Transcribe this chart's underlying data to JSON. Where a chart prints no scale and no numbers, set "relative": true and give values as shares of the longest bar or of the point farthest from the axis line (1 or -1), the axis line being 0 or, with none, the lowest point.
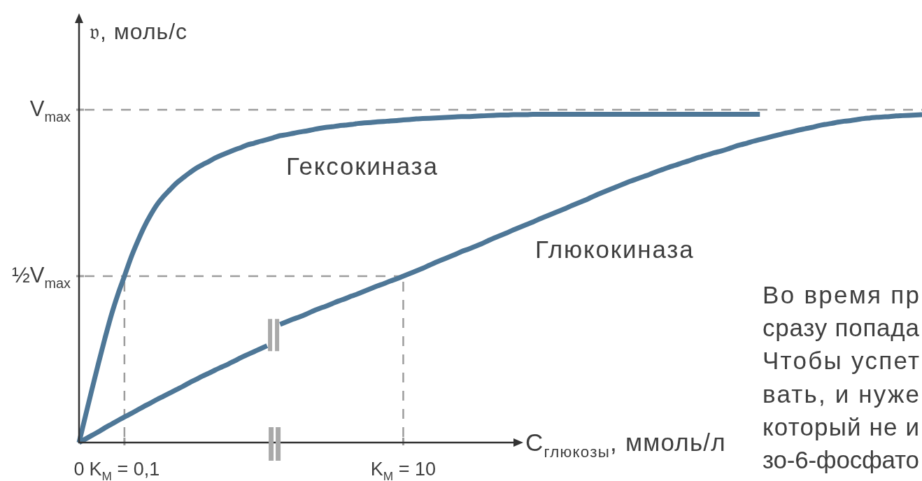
{
  "chart_data": {
    "type": "line",
    "relative": true,
    "xlabel": "C$_{глюкозы}$, ммоль/л",
    "ylabel": "𝔳, моль/с",
    "categories": [
      "0",
      null,
      null,
      null,
      null,
      null,
      null,
      "K$_{M}$ = 0,1",
      null,
      null,
      null,
      null,
      null,
      null,
      null,
      null,
      null,
      null,
      null,
      null,
      null,
      null,
      null,
      null,
      null,
      null,
      null,
      null,
      null,
      null,
      null,
      null,
      null,
      null,
      null,
      null,
      null,
      null,
      null,
      null,
      null,
      null,
      null,
      null,
      null,
      null,
      null,
      null,
      null,
      null,
      "K$_{M}$ = 10",
      null,
      null,
      null,
      null,
      null,
      null,
      null,
      null,
      null,
      null,
      null,
      null,
      null,
      null,
      null,
      null,
      null,
      null,
      null,
      null,
      null,
      null,
      null,
      null,
      null,
      null,
      null,
      null,
      null,
      null,
      null,
      null,
      null,
      null,
      null,
      null,
      null,
      null,
      null,
      null,
      null,
      null,
      null,
      null,
      null,
      null,
      null,
      null,
      null,
      null,
      null,
      null,
      null,
      null,
      null,
      null,
      null,
      null,
      null,
      null,
      null,
      null,
      null,
      null,
      null,
      null,
      null,
      null,
      null,
      null,
      null,
      null,
      null,
      null,
      null,
      null,
      null,
      null,
      null,
      null
    ],
    "series": [
      {
        "name": "Гексокиназа",
        "color": "#4e7797",
        "values": [
          0,
          0.082,
          0.163,
          0.242,
          0.318,
          0.39,
          0.452,
          0.507,
          0.563,
          0.611,
          0.655,
          0.692,
          0.724,
          0.749,
          0.77,
          0.79,
          0.806,
          0.821,
          0.835,
          0.846,
          0.856,
          0.867,
          0.876,
          0.884,
          0.892,
          0.899,
          0.907,
          0.912,
          0.918,
          0.923,
          0.929,
          0.935,
          0.938,
          0.942,
          0.946,
          0.949,
          0.953,
          0.957,
          0.96,
          0.962,
          0.965,
          0.967,
          0.969,
          0.972,
          0.974,
          0.975,
          0.977,
          0.978,
          0.98,
          0.981,
          0.983,
          0.984,
          0.986,
          0.987,
          0.988,
          0.989,
          0.99,
          0.991,
          0.992,
          0.993,
          0.993,
          0.994,
          0.995,
          0.996,
          0.997,
          0.998,
          0.998,
          0.999,
          0.999,
          0.999,
          1,
          1,
          1,
          1,
          1,
          1,
          1,
          1,
          1,
          1,
          1,
          1,
          1,
          1,
          1,
          1,
          1,
          1,
          1,
          1,
          1,
          1,
          1,
          1,
          1,
          1,
          1,
          1,
          1,
          1,
          1,
          1,
          1,
          1,
          1,
          1,
          null,
          null,
          null,
          null,
          null,
          null,
          null,
          null,
          null,
          null,
          null,
          null,
          null,
          null,
          null,
          null,
          null,
          null,
          null,
          null,
          null,
          null,
          null,
          null,
          null
        ]
      },
      {
        "name": "Глюкокиназа",
        "color": "#4e7797",
        "values": [
          0,
          0.011,
          0.022,
          0.033,
          0.045,
          0.056,
          0.067,
          0.078,
          0.088,
          0.099,
          0.11,
          0.12,
          0.131,
          0.141,
          0.151,
          0.161,
          0.171,
          0.182,
          0.192,
          0.202,
          0.211,
          0.221,
          0.23,
          0.239,
          0.249,
          0.259,
          0.268,
          0.277,
          0.286,
          0.295,
          null,
          0.36,
          0.368,
          0.376,
          0.383,
          0.391,
          0.4,
          0.408,
          0.415,
          0.423,
          0.431,
          0.438,
          0.446,
          0.453,
          0.461,
          0.469,
          0.477,
          0.484,
          0.492,
          0.499,
          0.507,
          0.515,
          0.523,
          0.531,
          0.54,
          0.549,
          0.557,
          0.565,
          0.573,
          0.582,
          0.589,
          0.597,
          0.605,
          0.614,
          0.623,
          0.631,
          0.639,
          0.648,
          0.656,
          0.664,
          0.672,
          0.681,
          0.689,
          0.697,
          0.705,
          0.713,
          0.722,
          0.73,
          0.738,
          0.747,
          0.756,
          0.764,
          0.772,
          0.78,
          0.788,
          0.796,
          0.803,
          0.81,
          0.817,
          0.825,
          0.832,
          0.839,
          0.845,
          0.852,
          0.858,
          0.865,
          0.871,
          0.877,
          0.883,
          0.888,
          0.894,
          0.901,
          0.907,
          0.912,
          0.918,
          0.923,
          0.928,
          0.933,
          0.938,
          0.943,
          0.947,
          0.952,
          0.956,
          0.96,
          0.965,
          0.969,
          0.972,
          0.976,
          0.979,
          0.981,
          0.984,
          0.987,
          0.989,
          0.991,
          0.992,
          0.993,
          0.995,
          0.996,
          0.997,
          0.998,
          0.999
        ]
      }
    ],
    "ref_lines": [
      {
        "axis": "y",
        "value": 1.014,
        "label": "V$_{max}$",
        "color": "#9d9d9d",
        "line_style": "dashed"
      },
      {
        "axis": "y",
        "value": 0.507,
        "label": "½V$_{max}$",
        "color": "#9d9d9d",
        "line_style": "dashed"
      },
      {
        "axis": "x",
        "value": "K$_{M}$ = 0,1",
        "color": "#9d9d9d",
        "line_style": "dashed"
      },
      {
        "axis": "x",
        "value": "K$_{M}$ = 10",
        "color": "#9d9d9d",
        "line_style": "dashed"
      }
    ],
    "annotations": [
      "Во время пр",
      "сразу попада",
      "Чтобы успет",
      "вать, и нуже",
      "который не и",
      "зо-6-фосфато"
    ]
  }
}
